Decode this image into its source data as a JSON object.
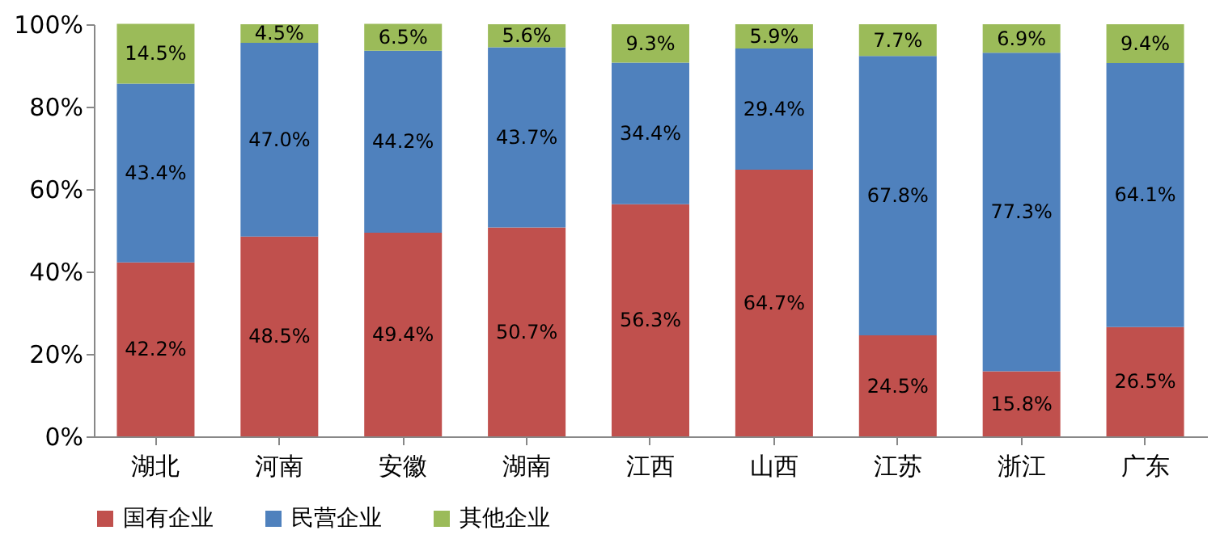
{
  "chart_data": {
    "type": "bar",
    "stacked": true,
    "categories": [
      "湖北",
      "河南",
      "安徽",
      "湖南",
      "江西",
      "山西",
      "江苏",
      "浙江",
      "广东"
    ],
    "series": [
      {
        "name": "国有企业",
        "color": "#c0504d",
        "values": [
          42.2,
          48.5,
          49.4,
          50.7,
          56.3,
          64.7,
          24.5,
          15.8,
          26.5
        ],
        "value_labels": [
          "42.2%",
          "48.5%",
          "49.4%",
          "50.7%",
          "56.3%",
          "64.7%",
          "24.5%",
          "15.8%",
          "26.5%"
        ]
      },
      {
        "name": "民营企业",
        "color": "#4f81bd",
        "values": [
          43.4,
          47.0,
          44.2,
          43.7,
          34.4,
          29.4,
          67.8,
          77.3,
          64.1
        ],
        "value_labels": [
          "43.4%",
          "47.0%",
          "44.2%",
          "43.7%",
          "34.4%",
          "29.4%",
          "67.8%",
          "77.3%",
          "64.1%"
        ]
      },
      {
        "name": "其他企业",
        "color": "#9bbb59",
        "values": [
          14.5,
          4.5,
          6.5,
          5.6,
          9.3,
          5.9,
          7.7,
          6.9,
          9.4
        ],
        "value_labels": [
          "14.5%",
          "4.5%",
          "6.5%",
          "5.6%",
          "9.3%",
          "5.9%",
          "7.7%",
          "6.9%",
          "9.4%"
        ]
      }
    ],
    "ylim": [
      0,
      100
    ],
    "yticks": [
      {
        "value": 0,
        "label": "0%"
      },
      {
        "value": 20,
        "label": "20%"
      },
      {
        "value": 40,
        "label": "40%"
      },
      {
        "value": 60,
        "label": "60%"
      },
      {
        "value": 80,
        "label": "80%"
      },
      {
        "value": 100,
        "label": "100%"
      }
    ],
    "grid": false,
    "legend": "bottom"
  }
}
